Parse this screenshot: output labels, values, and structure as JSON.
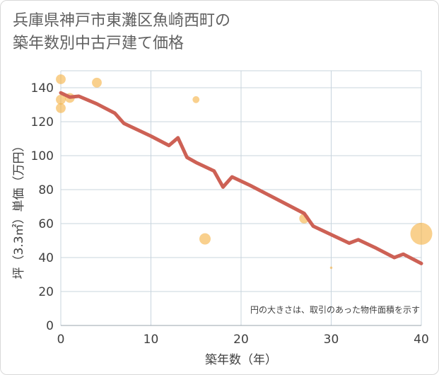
{
  "title_line1": "兵庫県神戸市東灘区魚崎西町の",
  "title_line2": "築年数別中古戸建て価格",
  "chart_data": {
    "type": "scatter+line",
    "title": "兵庫県神戸市東灘区魚崎西町の築年数別中古戸建て価格",
    "xlabel": "築年数（年）",
    "ylabel": "坪（3.3㎡）単価（万円）",
    "xlim": [
      0,
      40
    ],
    "ylim": [
      0,
      150
    ],
    "xticks": [
      0,
      10,
      20,
      30,
      40
    ],
    "yticks": [
      0,
      20,
      40,
      60,
      80,
      100,
      120,
      140
    ],
    "grid": true,
    "note": "円の大きさは、取引のあった物件面積を示す",
    "colors": {
      "bubble": "#f5b041",
      "line": "#cd6155"
    },
    "line": {
      "x": [
        0,
        1,
        2,
        4,
        6,
        7,
        10,
        12,
        13,
        14,
        15,
        17,
        18,
        19,
        21,
        23,
        25,
        27,
        28,
        30,
        32,
        33,
        35,
        37,
        38,
        40
      ],
      "y": [
        137,
        134.5,
        135,
        130.5,
        125,
        119,
        111.5,
        106,
        110.5,
        99,
        96,
        91,
        81.5,
        87.5,
        82.5,
        77,
        71.5,
        66,
        58.5,
        53.5,
        48.5,
        50.5,
        45.5,
        40,
        42,
        36.5
      ]
    },
    "bubbles": [
      {
        "x": 0,
        "y": 145,
        "size": 3
      },
      {
        "x": 0,
        "y": 133,
        "size": 3
      },
      {
        "x": 0,
        "y": 128,
        "size": 3
      },
      {
        "x": 1,
        "y": 134,
        "size": 3
      },
      {
        "x": 4,
        "y": 143,
        "size": 3
      },
      {
        "x": 15,
        "y": 133,
        "size": 1.5
      },
      {
        "x": 16,
        "y": 51,
        "size": 4
      },
      {
        "x": 27,
        "y": 63,
        "size": 3
      },
      {
        "x": 30,
        "y": 34,
        "size": 0.2
      },
      {
        "x": 40,
        "y": 54,
        "size": 15
      }
    ]
  }
}
